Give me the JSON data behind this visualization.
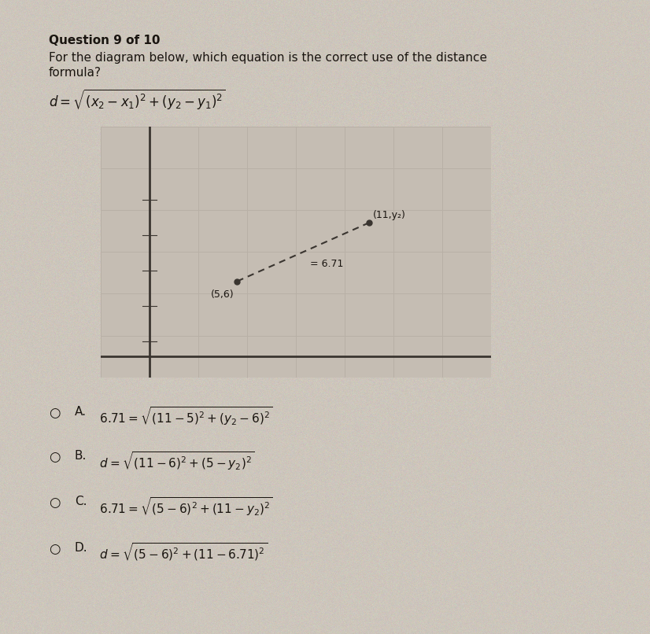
{
  "background_color": "#cdc6bc",
  "title": "Question 9 of 10",
  "question_line1": "For the diagram below, which equation is the correct use of the distance",
  "question_line2": "formula?",
  "graph_bg": "#c5bdb3",
  "graph_grid_color": "#b8b0a6",
  "axis_color": "#3a3530",
  "line_color": "#3a3530",
  "dot_color": "#3a3530",
  "text_color": "#1a1510",
  "p1_label": "(5,6)",
  "p2_label": "(11,y₂)",
  "dist_label": "= 6.71",
  "option_A": "A. 6.71=√(11-5)² +(y₂-6)²",
  "option_B": "B. d=√(11-6)²+(5- y₂)²",
  "option_C": "C. 6.71=√(5-6)²+(11-y₂)²",
  "option_D": "D. d=√(5-6)²+(11-6.71)²",
  "title_fontsize": 11,
  "body_fontsize": 11,
  "option_fontsize": 11,
  "formula_fontsize": 11
}
